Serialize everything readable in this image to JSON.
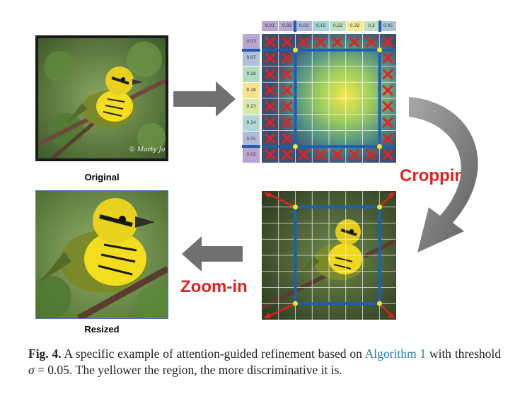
{
  "figure": {
    "original_label": "Original",
    "resized_label": "Resized",
    "cropping_label": "Cropping",
    "zoomin_label": "Zoom-in",
    "col_weights": [
      "0.01",
      "0.02",
      "0.03",
      "0.15",
      "0.22",
      "0.32",
      "0.2",
      "0.05"
    ],
    "row_weights": [
      "0.03",
      "0.07",
      "0.18",
      "0.28",
      "0.23",
      "0.14",
      "0.05",
      "0.02"
    ],
    "watermark": "© Marty Jones",
    "colors": {
      "accent_red": "#e81f1f",
      "grid_blue": "#1f5fb0",
      "arrow_gray": "#707070"
    }
  },
  "caption": {
    "fig_label": "Fig. 4.",
    "text_a": " A specific example of attention-guided refinement based on ",
    "cite": "Algorithm 1",
    "text_b": " with threshold ",
    "math_symbol": "σ",
    "math_eq": " = 0.05",
    "text_c": ". The yellower the region, the more discriminative it is."
  }
}
